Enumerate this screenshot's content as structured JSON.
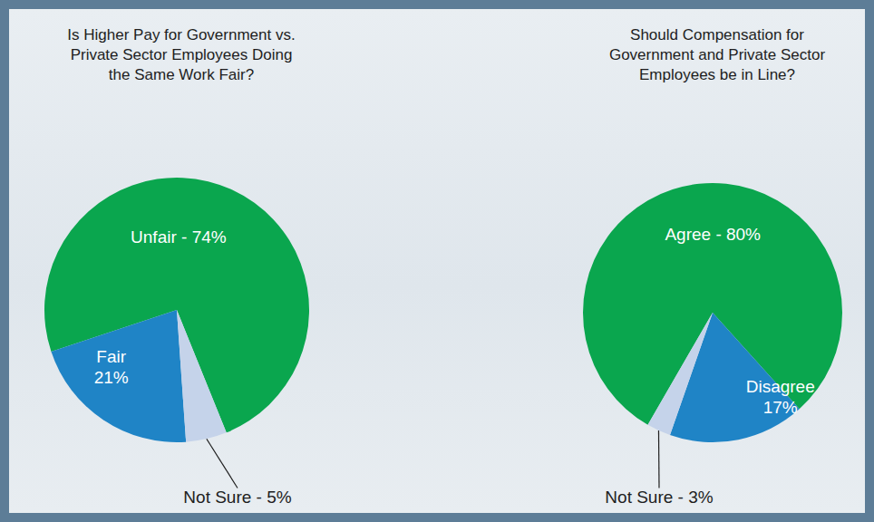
{
  "chart_data": [
    {
      "type": "pie",
      "title": "Is Higher Pay for Government vs. Private Sector Employees Doing the Same Work Fair?",
      "categories": [
        "Unfair",
        "Fair",
        "Not Sure"
      ],
      "values": [
        74,
        21,
        5
      ],
      "value_labels": [
        "Unfair - 74%",
        "Fair 21%",
        "Not Sure - 5%"
      ],
      "colors": [
        "#0aa64e",
        "#1f84c6",
        "#c5d3ea"
      ],
      "data_labels": true
    },
    {
      "type": "pie",
      "title": "Should Compensation for Government and Private Sector Employees be in Line?",
      "categories": [
        "Agree",
        "Disagree",
        "Not Sure"
      ],
      "values": [
        80,
        17,
        3
      ],
      "value_labels": [
        "Agree - 80%",
        "Disagree 17%",
        "Not Sure - 3%"
      ],
      "colors": [
        "#0aa64e",
        "#1f84c6",
        "#c5d3ea"
      ],
      "data_labels": true
    }
  ]
}
